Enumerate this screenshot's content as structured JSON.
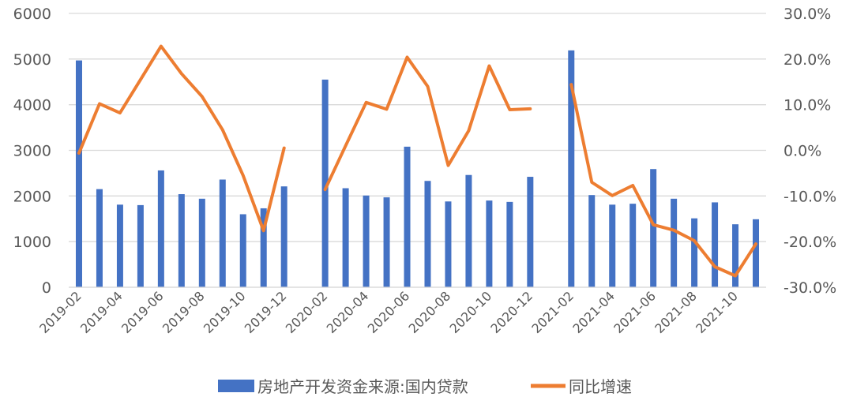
{
  "chart_data": {
    "type": "bar+line",
    "categories": [
      "2019-02",
      "2019-03",
      "2019-04",
      "2019-05",
      "2019-06",
      "2019-07",
      "2019-08",
      "2019-09",
      "2019-10",
      "2019-11",
      "2019-12",
      "2020-01",
      "2020-02",
      "2020-03",
      "2020-04",
      "2020-05",
      "2020-06",
      "2020-07",
      "2020-08",
      "2020-09",
      "2020-10",
      "2020-11",
      "2020-12",
      "2021-01",
      "2021-02",
      "2021-03",
      "2021-04",
      "2021-05",
      "2021-06",
      "2021-07",
      "2021-08",
      "2021-09",
      "2021-10",
      "2021-11"
    ],
    "x_tick_labels": [
      "2019-02",
      "2019-04",
      "2019-06",
      "2019-08",
      "2019-10",
      "2019-12",
      "2020-02",
      "2020-04",
      "2020-06",
      "2020-08",
      "2020-10",
      "2020-12",
      "2021-02",
      "2021-04",
      "2021-06",
      "2021-08",
      "2021-10"
    ],
    "series": [
      {
        "name": "房地产开发资金来源:国内贷款",
        "type": "bar",
        "axis": "left",
        "color": "#4472C4",
        "values": [
          4970,
          2150,
          1810,
          1800,
          2560,
          2040,
          1940,
          2360,
          1600,
          1730,
          2210,
          null,
          4550,
          2170,
          2010,
          1970,
          3080,
          2330,
          1880,
          2460,
          1900,
          1870,
          2420,
          null,
          5190,
          2020,
          1810,
          1830,
          2590,
          1940,
          1510,
          1860,
          1380,
          1490
        ]
      },
      {
        "name": "同比增速",
        "type": "line",
        "axis": "right",
        "color": "#ED7D31",
        "values": [
          -0.6,
          10.2,
          8.2,
          15.5,
          22.8,
          16.8,
          11.8,
          4.5,
          -5.5,
          -17.6,
          0.5,
          null,
          -8.6,
          1.0,
          10.5,
          9.0,
          20.4,
          14.0,
          -3.3,
          4.3,
          18.5,
          8.9,
          9.1,
          null,
          14.4,
          -7.0,
          -9.9,
          -7.7,
          -16.3,
          -17.5,
          -19.8,
          -25.5,
          -27.5,
          -20.5
        ]
      }
    ],
    "y_left": {
      "min": 0,
      "max": 6000,
      "ticks": [
        "6000",
        "5000",
        "4000",
        "3000",
        "2000",
        "1000",
        "0"
      ]
    },
    "y_right": {
      "min": -30,
      "max": 30,
      "ticks": [
        "30.0%",
        "20.0%",
        "10.0%",
        "0.0%",
        "-10.0%",
        "-20.0%",
        "-30.0%"
      ]
    },
    "grid": true,
    "legend": {
      "position": "bottom",
      "items": [
        "房地产开发资金来源:国内贷款",
        "同比增速"
      ]
    }
  },
  "colors": {
    "bar": "#4472C4",
    "line": "#ED7D31",
    "grid": "#D9D9D9",
    "axis_text": "#595959"
  }
}
